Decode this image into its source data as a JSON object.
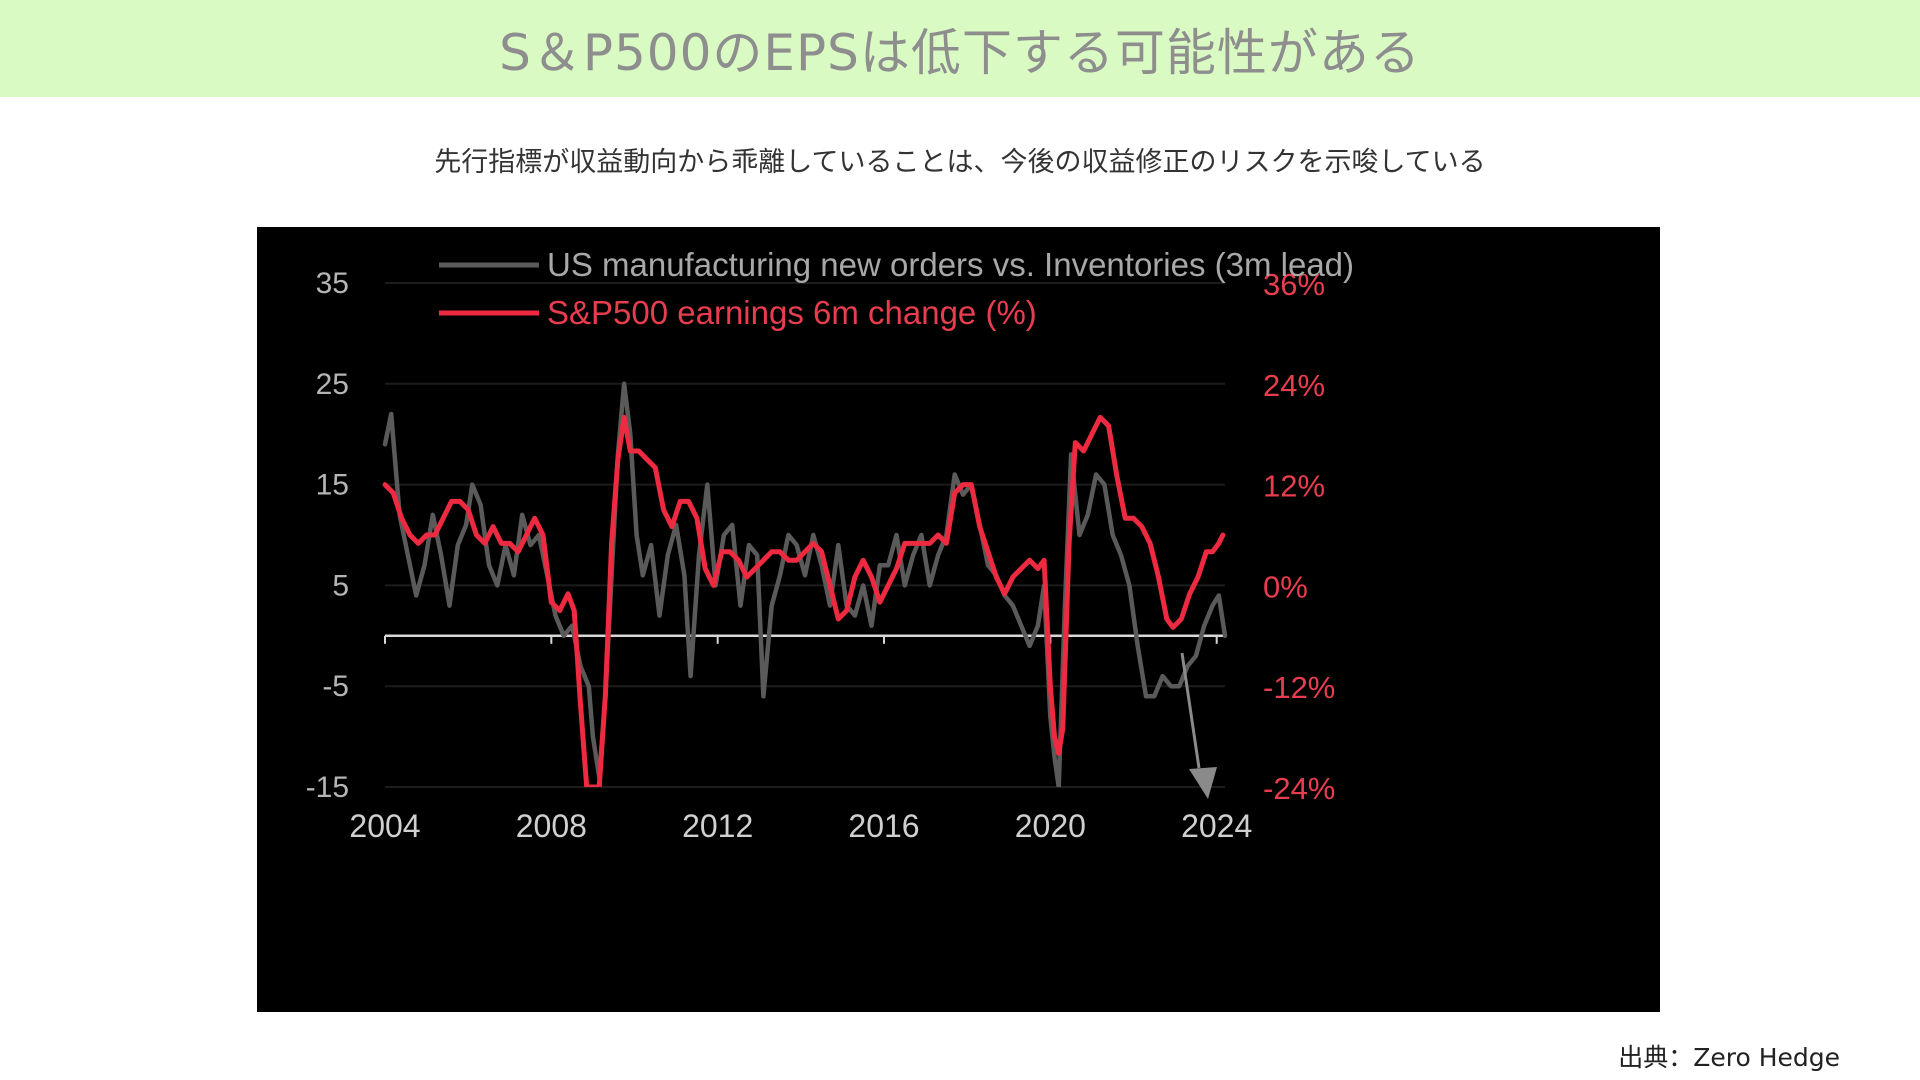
{
  "header": {
    "title": "S＆P500のEPSは低下する可能性がある",
    "subtitle": "先行指標が収益動向から乖離していることは、今後の収益修正のリスクを示唆している",
    "source": "出典：Zero Hedge"
  },
  "chart_data": {
    "type": "line",
    "title": "",
    "xlabel": "",
    "x_ticks": [
      "2004",
      "2008",
      "2012",
      "2016",
      "2020",
      "2024"
    ],
    "xlim": [
      2004,
      2024.2
    ],
    "left_axis": {
      "ticks": [
        "35",
        "25",
        "15",
        "5",
        "-5",
        "-15"
      ],
      "ylim": [
        -15,
        35
      ]
    },
    "right_axis": {
      "ticks": [
        "36%",
        "24%",
        "12%",
        "0%",
        "-12%",
        "-24%"
      ],
      "ylim": [
        -24,
        36
      ]
    },
    "grid": true,
    "legend": "top-left",
    "series": [
      {
        "name": "US manufacturing new orders vs. Inventories (3m lead)",
        "axis": "left",
        "color": "#5a5a5a",
        "points": [
          [
            2004.0,
            19
          ],
          [
            2004.15,
            22
          ],
          [
            2004.35,
            12
          ],
          [
            2004.55,
            8
          ],
          [
            2004.75,
            4
          ],
          [
            2004.95,
            7
          ],
          [
            2005.15,
            12
          ],
          [
            2005.35,
            8
          ],
          [
            2005.55,
            3
          ],
          [
            2005.75,
            9
          ],
          [
            2005.95,
            11
          ],
          [
            2006.1,
            15
          ],
          [
            2006.3,
            13
          ],
          [
            2006.5,
            7
          ],
          [
            2006.7,
            5
          ],
          [
            2006.9,
            9
          ],
          [
            2007.1,
            6
          ],
          [
            2007.3,
            12
          ],
          [
            2007.5,
            9
          ],
          [
            2007.7,
            10
          ],
          [
            2007.9,
            6
          ],
          [
            2008.1,
            2
          ],
          [
            2008.3,
            0
          ],
          [
            2008.5,
            1
          ],
          [
            2008.7,
            -3
          ],
          [
            2008.9,
            -5
          ],
          [
            2009.0,
            -10
          ],
          [
            2009.15,
            -14
          ],
          [
            2009.3,
            -6
          ],
          [
            2009.45,
            6
          ],
          [
            2009.6,
            18
          ],
          [
            2009.75,
            25
          ],
          [
            2009.9,
            20
          ],
          [
            2010.05,
            10
          ],
          [
            2010.2,
            6
          ],
          [
            2010.4,
            9
          ],
          [
            2010.6,
            2
          ],
          [
            2010.8,
            8
          ],
          [
            2011.0,
            11
          ],
          [
            2011.2,
            6
          ],
          [
            2011.35,
            -4
          ],
          [
            2011.55,
            8
          ],
          [
            2011.75,
            15
          ],
          [
            2011.95,
            5
          ],
          [
            2012.15,
            10
          ],
          [
            2012.35,
            11
          ],
          [
            2012.55,
            3
          ],
          [
            2012.75,
            9
          ],
          [
            2012.95,
            8
          ],
          [
            2013.1,
            -6
          ],
          [
            2013.3,
            3
          ],
          [
            2013.5,
            6
          ],
          [
            2013.7,
            10
          ],
          [
            2013.9,
            9
          ],
          [
            2014.1,
            6
          ],
          [
            2014.3,
            10
          ],
          [
            2014.5,
            7
          ],
          [
            2014.7,
            3
          ],
          [
            2014.9,
            9
          ],
          [
            2015.1,
            3
          ],
          [
            2015.3,
            2
          ],
          [
            2015.5,
            5
          ],
          [
            2015.7,
            1
          ],
          [
            2015.9,
            7
          ],
          [
            2016.1,
            7
          ],
          [
            2016.3,
            10
          ],
          [
            2016.5,
            5
          ],
          [
            2016.7,
            8
          ],
          [
            2016.9,
            10
          ],
          [
            2017.1,
            5
          ],
          [
            2017.3,
            8
          ],
          [
            2017.5,
            10
          ],
          [
            2017.7,
            16
          ],
          [
            2017.9,
            14
          ],
          [
            2018.1,
            15
          ],
          [
            2018.3,
            11
          ],
          [
            2018.5,
            7
          ],
          [
            2018.7,
            6
          ],
          [
            2018.9,
            4
          ],
          [
            2019.1,
            3
          ],
          [
            2019.3,
            1
          ],
          [
            2019.5,
            -1
          ],
          [
            2019.7,
            1
          ],
          [
            2019.85,
            5
          ],
          [
            2020.0,
            -8
          ],
          [
            2020.1,
            -12
          ],
          [
            2020.2,
            -15
          ],
          [
            2020.35,
            3
          ],
          [
            2020.5,
            18
          ],
          [
            2020.7,
            10
          ],
          [
            2020.9,
            12
          ],
          [
            2021.1,
            16
          ],
          [
            2021.3,
            15
          ],
          [
            2021.5,
            10
          ],
          [
            2021.7,
            8
          ],
          [
            2021.9,
            5
          ],
          [
            2022.1,
            -1
          ],
          [
            2022.3,
            -6
          ],
          [
            2022.5,
            -6
          ],
          [
            2022.7,
            -4
          ],
          [
            2022.9,
            -5
          ],
          [
            2023.1,
            -5
          ],
          [
            2023.3,
            -3
          ],
          [
            2023.5,
            -2
          ],
          [
            2023.7,
            1
          ],
          [
            2023.9,
            3
          ],
          [
            2024.05,
            4
          ],
          [
            2024.2,
            0
          ]
        ]
      },
      {
        "name": "S&P500 earnings 6m change (%)",
        "axis": "right",
        "color": "#ee2a41",
        "points": [
          [
            2004.0,
            12
          ],
          [
            2004.2,
            11
          ],
          [
            2004.4,
            8
          ],
          [
            2004.6,
            6
          ],
          [
            2004.8,
            5
          ],
          [
            2005.0,
            6
          ],
          [
            2005.2,
            6
          ],
          [
            2005.4,
            8
          ],
          [
            2005.6,
            10
          ],
          [
            2005.8,
            10
          ],
          [
            2006.0,
            9
          ],
          [
            2006.2,
            6
          ],
          [
            2006.4,
            5
          ],
          [
            2006.6,
            7
          ],
          [
            2006.8,
            5
          ],
          [
            2007.0,
            5
          ],
          [
            2007.2,
            4
          ],
          [
            2007.4,
            6
          ],
          [
            2007.6,
            8
          ],
          [
            2007.8,
            6
          ],
          [
            2008.0,
            -2
          ],
          [
            2008.2,
            -3
          ],
          [
            2008.4,
            -1
          ],
          [
            2008.55,
            -3
          ],
          [
            2008.7,
            -14
          ],
          [
            2008.85,
            -24
          ],
          [
            2009.0,
            -24
          ],
          [
            2009.15,
            -24
          ],
          [
            2009.3,
            -13
          ],
          [
            2009.45,
            5
          ],
          [
            2009.6,
            15
          ],
          [
            2009.75,
            20
          ],
          [
            2009.9,
            16
          ],
          [
            2010.1,
            16
          ],
          [
            2010.3,
            15
          ],
          [
            2010.5,
            14
          ],
          [
            2010.7,
            9
          ],
          [
            2010.9,
            7
          ],
          [
            2011.1,
            10
          ],
          [
            2011.3,
            10
          ],
          [
            2011.5,
            8
          ],
          [
            2011.7,
            2
          ],
          [
            2011.9,
            0
          ],
          [
            2012.1,
            4
          ],
          [
            2012.3,
            4
          ],
          [
            2012.5,
            3
          ],
          [
            2012.7,
            1
          ],
          [
            2012.9,
            2
          ],
          [
            2013.1,
            3
          ],
          [
            2013.3,
            4
          ],
          [
            2013.5,
            4
          ],
          [
            2013.7,
            3
          ],
          [
            2013.9,
            3
          ],
          [
            2014.1,
            4
          ],
          [
            2014.3,
            5
          ],
          [
            2014.5,
            4
          ],
          [
            2014.7,
            0
          ],
          [
            2014.9,
            -4
          ],
          [
            2015.1,
            -3
          ],
          [
            2015.3,
            1
          ],
          [
            2015.5,
            3
          ],
          [
            2015.7,
            1
          ],
          [
            2015.9,
            -2
          ],
          [
            2016.1,
            0
          ],
          [
            2016.3,
            2
          ],
          [
            2016.5,
            5
          ],
          [
            2016.7,
            5
          ],
          [
            2016.9,
            5
          ],
          [
            2017.1,
            5
          ],
          [
            2017.3,
            6
          ],
          [
            2017.5,
            5
          ],
          [
            2017.7,
            11
          ],
          [
            2017.9,
            12
          ],
          [
            2018.1,
            12
          ],
          [
            2018.3,
            7
          ],
          [
            2018.5,
            4
          ],
          [
            2018.7,
            1
          ],
          [
            2018.9,
            -1
          ],
          [
            2019.1,
            1
          ],
          [
            2019.3,
            2
          ],
          [
            2019.5,
            3
          ],
          [
            2019.7,
            2
          ],
          [
            2019.85,
            3
          ],
          [
            2020.0,
            -12
          ],
          [
            2020.1,
            -18
          ],
          [
            2020.2,
            -20
          ],
          [
            2020.3,
            -17
          ],
          [
            2020.45,
            5
          ],
          [
            2020.6,
            17
          ],
          [
            2020.8,
            16
          ],
          [
            2021.0,
            18
          ],
          [
            2021.2,
            20
          ],
          [
            2021.4,
            19
          ],
          [
            2021.6,
            13
          ],
          [
            2021.8,
            8
          ],
          [
            2022.0,
            8
          ],
          [
            2022.2,
            7
          ],
          [
            2022.4,
            5
          ],
          [
            2022.6,
            1
          ],
          [
            2022.8,
            -4
          ],
          [
            2022.95,
            -5
          ],
          [
            2023.15,
            -4
          ],
          [
            2023.35,
            -1
          ],
          [
            2023.55,
            1
          ],
          [
            2023.75,
            4
          ],
          [
            2023.9,
            4
          ],
          [
            2024.05,
            5
          ],
          [
            2024.15,
            6
          ]
        ]
      }
    ],
    "annotation": "down-arrow near 2024"
  }
}
